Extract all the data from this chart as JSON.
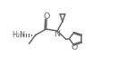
{
  "line_color": "#666666",
  "line_width": 1.1,
  "font_size": 5.8,
  "xlim": [
    0,
    10
  ],
  "ylim": [
    0,
    6
  ],
  "figsize": [
    1.32,
    0.79
  ],
  "dpi": 100
}
